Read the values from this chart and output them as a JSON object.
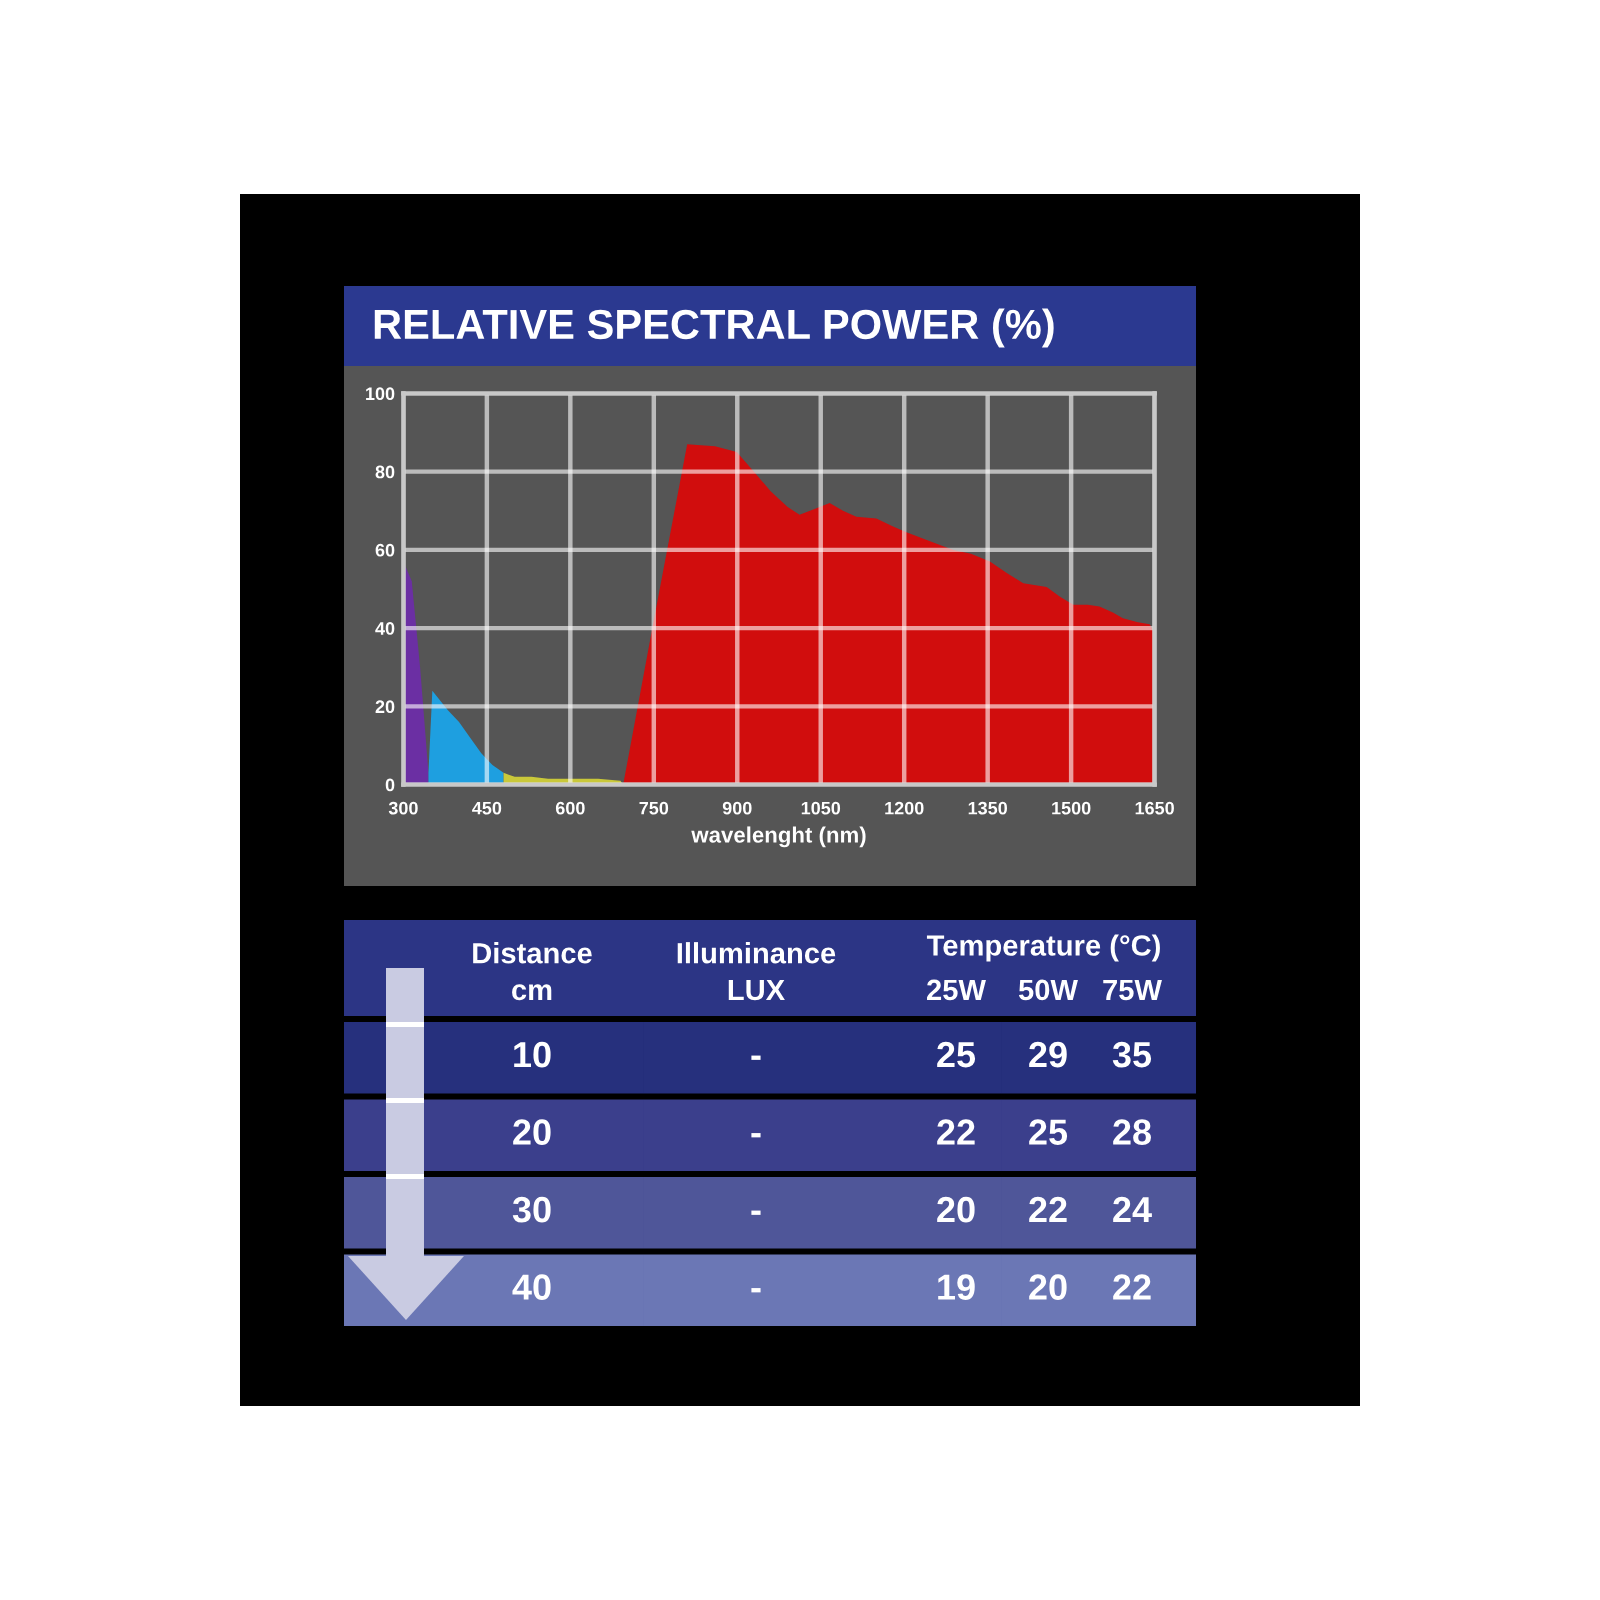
{
  "chart_data": [
    {
      "type": "area",
      "title": "RELATIVE SPECTRAL POWER (%)",
      "xlabel": "wavelenght (nm)",
      "series": [
        {
          "color": "#6b2fa3",
          "x": [
            300,
            315,
            330,
            345
          ],
          "values": [
            57,
            52,
            30,
            3
          ]
        },
        {
          "color": "#1e9fe0",
          "x": [
            345,
            352,
            380,
            400,
            420,
            440,
            460,
            480
          ],
          "values": [
            3,
            24,
            19,
            16,
            12,
            8,
            5,
            3
          ]
        },
        {
          "color": "#c9c83a",
          "x": [
            480,
            500,
            530,
            560,
            600,
            650,
            690,
            695
          ],
          "values": [
            3,
            2,
            2,
            1.5,
            1.5,
            1.5,
            1,
            0
          ]
        },
        {
          "color": "#d10d0d",
          "x": [
            695,
            750,
            810,
            860,
            899,
            930,
            960,
            990,
            1012,
            1040,
            1066,
            1090,
            1114,
            1150,
            1180,
            1204,
            1250,
            1288,
            1320,
            1354,
            1385,
            1414,
            1456,
            1480,
            1504,
            1530,
            1551,
            1575,
            1593,
            1620,
            1641,
            1650
          ],
          "values": [
            0,
            42,
            87,
            86.5,
            85,
            80,
            75,
            71,
            69,
            70.5,
            72,
            70,
            68.5,
            68,
            66,
            64.5,
            62,
            60,
            59,
            57,
            54,
            51.5,
            50.5,
            48,
            46,
            46,
            45.5,
            44,
            42.5,
            41.5,
            41,
            39
          ]
        }
      ],
      "xlim": [
        300,
        1650
      ],
      "ylim": [
        0,
        100
      ],
      "xticks": [
        300,
        450,
        600,
        750,
        900,
        1050,
        1200,
        1350,
        1500,
        1650
      ],
      "yticks": [
        0,
        20,
        40,
        60,
        80,
        100
      ],
      "grid": true
    },
    {
      "type": "heatmap",
      "ylabel": "Distance\ncm",
      "categories": [
        "Illuminance\nLUX",
        "25W",
        "50W",
        "75W"
      ],
      "y_categories": [
        "10",
        "20",
        "30",
        "40"
      ],
      "annotations": [
        "Temperature (°C)"
      ],
      "cells": [
        [
          null,
          25,
          29,
          35
        ],
        [
          null,
          22,
          25,
          28
        ],
        [
          null,
          20,
          22,
          24
        ],
        [
          null,
          19,
          20,
          22
        ]
      ],
      "cell_labels": [
        [
          "-",
          "25",
          "29",
          "35"
        ],
        [
          "-",
          "22",
          "25",
          "28"
        ],
        [
          "-",
          "20",
          "22",
          "24"
        ],
        [
          "-",
          "19",
          "20",
          "22"
        ]
      ],
      "colors": [
        "#2c3585",
        "#26307d",
        "#3b3f8c",
        "#4f5699",
        "#6b77b5"
      ]
    }
  ]
}
